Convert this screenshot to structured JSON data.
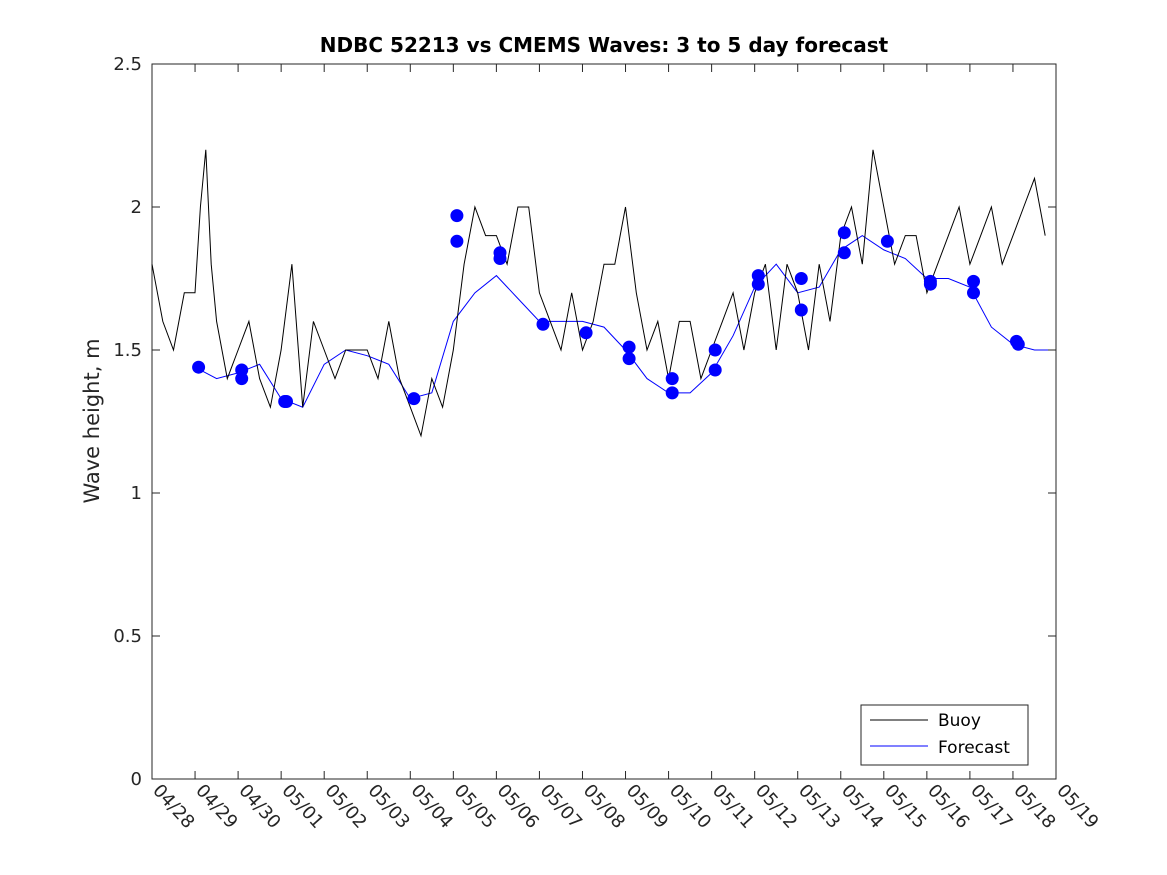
{
  "chart_data": {
    "type": "line",
    "title": "NDBC 52213 vs CMEMS Waves: 3 to 5 day forecast",
    "xlabel": "",
    "ylabel": "Wave height, m",
    "xlim": [
      "04/28",
      "05/19"
    ],
    "ylim": [
      0,
      2.5
    ],
    "x_tick_labels": [
      "04/28",
      "04/29",
      "04/30",
      "05/01",
      "05/02",
      "05/03",
      "05/04",
      "05/05",
      "05/06",
      "05/07",
      "05/08",
      "05/09",
      "05/10",
      "05/11",
      "05/12",
      "05/13",
      "05/14",
      "05/15",
      "05/16",
      "05/17",
      "05/18",
      "05/19"
    ],
    "y_tick_labels": [
      "0",
      "0.5",
      "1",
      "1.5",
      "2",
      "2.5"
    ],
    "y_ticks": [
      0,
      0.5,
      1,
      1.5,
      2,
      2.5
    ],
    "grid": false,
    "legend": {
      "placement": "bottom-right",
      "entries": [
        "Buoy",
        "Forecast"
      ]
    },
    "colors": {
      "buoy": "#000000",
      "forecast": "#0000ff"
    },
    "series": [
      {
        "name": "Buoy",
        "color": "#000000",
        "x": [
          "04/28 00:00",
          "04/28 06:00",
          "04/28 12:00",
          "04/28 18:00",
          "04/29 00:00",
          "04/29 03:00",
          "04/29 06:00",
          "04/29 09:00",
          "04/29 12:00",
          "04/29 18:00",
          "04/30 00:00",
          "04/30 06:00",
          "04/30 12:00",
          "04/30 18:00",
          "05/01 00:00",
          "05/01 06:00",
          "05/01 12:00",
          "05/01 18:00",
          "05/02 00:00",
          "05/02 06:00",
          "05/02 12:00",
          "05/02 18:00",
          "05/03 00:00",
          "05/03 06:00",
          "05/03 12:00",
          "05/03 18:00",
          "05/04 00:00",
          "05/04 06:00",
          "05/04 12:00",
          "05/04 18:00",
          "05/05 00:00",
          "05/05 06:00",
          "05/05 12:00",
          "05/05 18:00",
          "05/06 00:00",
          "05/06 06:00",
          "05/06 12:00",
          "05/06 18:00",
          "05/07 00:00",
          "05/07 06:00",
          "05/07 12:00",
          "05/07 18:00",
          "05/08 00:00",
          "05/08 06:00",
          "05/08 12:00",
          "05/08 18:00",
          "05/09 00:00",
          "05/09 06:00",
          "05/09 12:00",
          "05/09 18:00",
          "05/10 00:00",
          "05/10 06:00",
          "05/10 12:00",
          "05/10 18:00",
          "05/11 00:00",
          "05/11 06:00",
          "05/11 12:00",
          "05/11 18:00",
          "05/12 00:00",
          "05/12 06:00",
          "05/12 12:00",
          "05/12 18:00",
          "05/13 00:00",
          "05/13 06:00",
          "05/13 12:00",
          "05/13 18:00",
          "05/14 00:00",
          "05/14 06:00",
          "05/14 12:00",
          "05/14 18:00",
          "05/15 00:00",
          "05/15 06:00",
          "05/15 12:00",
          "05/15 18:00",
          "05/16 00:00",
          "05/16 06:00",
          "05/16 12:00",
          "05/16 18:00",
          "05/17 00:00",
          "05/17 06:00",
          "05/17 12:00",
          "05/17 18:00",
          "05/18 00:00",
          "05/18 06:00",
          "05/18 12:00",
          "05/18 18:00"
        ],
        "y": [
          1.8,
          1.6,
          1.5,
          1.7,
          1.7,
          2.0,
          2.2,
          1.8,
          1.6,
          1.4,
          1.5,
          1.6,
          1.4,
          1.3,
          1.5,
          1.8,
          1.3,
          1.6,
          1.5,
          1.4,
          1.5,
          1.5,
          1.5,
          1.4,
          1.6,
          1.4,
          1.3,
          1.2,
          1.4,
          1.3,
          1.5,
          1.8,
          2.0,
          1.9,
          1.9,
          1.8,
          2.0,
          2.0,
          1.7,
          1.6,
          1.5,
          1.7,
          1.5,
          1.6,
          1.8,
          1.8,
          2.0,
          1.7,
          1.5,
          1.6,
          1.4,
          1.6,
          1.6,
          1.4,
          1.5,
          1.6,
          1.7,
          1.5,
          1.7,
          1.8,
          1.5,
          1.8,
          1.7,
          1.5,
          1.8,
          1.6,
          1.9,
          2.0,
          1.8,
          2.2,
          2.0,
          1.8,
          1.9,
          1.9,
          1.7,
          1.8,
          1.9,
          2.0,
          1.8,
          1.9,
          2.0,
          1.8,
          1.9,
          2.0,
          2.1,
          1.9
        ]
      },
      {
        "name": "Forecast",
        "color": "#0000ff",
        "x": [
          "04/29 00:00",
          "04/29 12:00",
          "04/30 00:00",
          "04/30 12:00",
          "05/01 00:00",
          "05/01 12:00",
          "05/02 00:00",
          "05/02 12:00",
          "05/03 00:00",
          "05/03 12:00",
          "05/04 00:00",
          "05/04 12:00",
          "05/05 00:00",
          "05/05 12:00",
          "05/06 00:00",
          "05/06 12:00",
          "05/07 00:00",
          "05/07 12:00",
          "05/08 00:00",
          "05/08 12:00",
          "05/09 00:00",
          "05/09 12:00",
          "05/10 00:00",
          "05/10 12:00",
          "05/11 00:00",
          "05/11 12:00",
          "05/12 00:00",
          "05/12 12:00",
          "05/13 00:00",
          "05/13 12:00",
          "05/14 00:00",
          "05/14 12:00",
          "05/15 00:00",
          "05/15 12:00",
          "05/16 00:00",
          "05/16 12:00",
          "05/17 00:00",
          "05/17 12:00",
          "05/18 00:00",
          "05/18 12:00",
          "05/19 00:00"
        ],
        "y": [
          1.44,
          1.4,
          1.42,
          1.45,
          1.33,
          1.3,
          1.45,
          1.5,
          1.48,
          1.45,
          1.33,
          1.35,
          1.6,
          1.7,
          1.76,
          1.68,
          1.6,
          1.6,
          1.6,
          1.58,
          1.5,
          1.4,
          1.35,
          1.35,
          1.42,
          1.55,
          1.72,
          1.8,
          1.7,
          1.72,
          1.85,
          1.9,
          1.85,
          1.82,
          1.75,
          1.75,
          1.72,
          1.58,
          1.52,
          1.5,
          1.5
        ]
      }
    ],
    "forecast_markers": {
      "x": [
        "04/29 02:00",
        "04/30 02:00",
        "04/30 02:00",
        "05/01 02:00",
        "05/01 03:00",
        "05/04 02:00",
        "05/05 02:00",
        "05/05 02:00",
        "05/06 02:00",
        "05/06 02:00",
        "05/07 02:00",
        "05/08 02:00",
        "05/09 02:00",
        "05/09 02:00",
        "05/10 02:00",
        "05/10 02:00",
        "05/11 02:00",
        "05/11 02:00",
        "05/12 02:00",
        "05/12 02:00",
        "05/13 02:00",
        "05/13 02:00",
        "05/14 02:00",
        "05/14 02:00",
        "05/15 02:00",
        "05/16 02:00",
        "05/16 02:00",
        "05/17 02:00",
        "05/17 02:00",
        "05/18 02:00",
        "05/18 03:00"
      ],
      "y": [
        1.44,
        1.43,
        1.4,
        1.32,
        1.32,
        1.33,
        1.97,
        1.88,
        1.84,
        1.82,
        1.59,
        1.56,
        1.51,
        1.47,
        1.4,
        1.35,
        1.5,
        1.43,
        1.76,
        1.73,
        1.75,
        1.64,
        1.91,
        1.84,
        1.88,
        1.74,
        1.73,
        1.74,
        1.7,
        1.53,
        1.52
      ]
    }
  }
}
